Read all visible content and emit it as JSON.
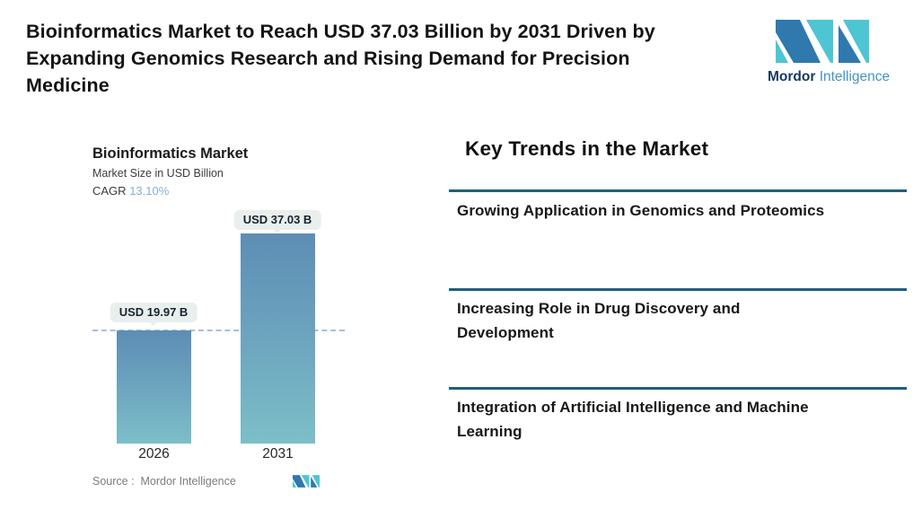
{
  "header": {
    "title": "Bioinformatics Market to Reach USD 37.03 Billion by 2031 Driven by\nExpanding Genomics Research and Rising Demand for Precision\nMedicine",
    "brand": {
      "name": "Mordor",
      "suffix": "Intelligence"
    }
  },
  "chart_data": {
    "type": "bar",
    "title": "Bioinformatics Market",
    "subtitle": "Market Size in USD Billion",
    "cagr_label": "CAGR",
    "cagr_value": "13.10%",
    "categories": [
      "2026",
      "2031"
    ],
    "values": [
      19.97,
      37.03
    ],
    "data_labels": [
      "USD 19.97 B",
      "USD 37.03 B"
    ],
    "unit": "USD Billion",
    "reference_line_value": 19.97,
    "gridlines": false,
    "legend": false,
    "source": "Source :  Mordor Intelligence"
  },
  "trends": {
    "heading": "Key Trends in the Market",
    "items": [
      {
        "label": "Growing Application in Genomics and Proteomics"
      },
      {
        "label": "Increasing Role in Drug Discovery and\nDevelopment"
      },
      {
        "label": "Integration of Artificial Intelligence and Machine\nLearning"
      }
    ]
  },
  "colors": {
    "brand_teal": "#4ec5d2",
    "brand_blue": "#2f79ae",
    "brand_name_navy": "#16395e",
    "brand_suffix_blue": "#4793c2",
    "bar_gradient_top": "#5d8db5",
    "bar_gradient_bottom": "#7cbfc8",
    "reference_dash": "#a4bfd7",
    "pill_background": "#e9efec",
    "cagr_value_blue": "#86aecf",
    "divider_teal": "#1f5f7d"
  }
}
